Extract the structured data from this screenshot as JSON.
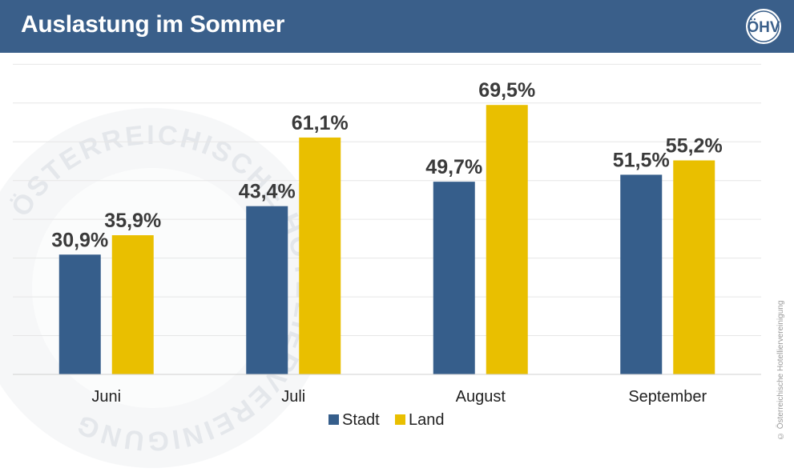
{
  "header": {
    "title": "Auslastung im Sommer",
    "logo_text": "ÖHV",
    "logo_icon": "oehv-logo-icon"
  },
  "watermark": {
    "text": "ÖSTERREICHISCHE HOTELIERVEREINIGUNG"
  },
  "copyright": "© Österreichische Hotelliervereinigung",
  "colors": {
    "header": "#3a5f8a",
    "stadt": "#365e8b",
    "land": "#e9bf00",
    "grid": "#e6e6e6",
    "label": "#3a3a3a"
  },
  "chart_data": {
    "type": "bar",
    "categories": [
      "Juni",
      "Juli",
      "August",
      "September"
    ],
    "series": [
      {
        "name": "Stadt",
        "values": [
          30.9,
          43.4,
          49.7,
          51.5
        ],
        "labels": [
          "30,9%",
          "43,4%",
          "49,7%",
          "51,5%"
        ]
      },
      {
        "name": "Land",
        "values": [
          35.9,
          61.1,
          69.5,
          55.2
        ],
        "labels": [
          "35,9%",
          "61,1%",
          "69,5%",
          "55,2%"
        ]
      }
    ],
    "title": "Auslastung im Sommer",
    "xlabel": "",
    "ylabel": "",
    "ylim": [
      0,
      80
    ],
    "grid": true,
    "legend": "bottom"
  }
}
